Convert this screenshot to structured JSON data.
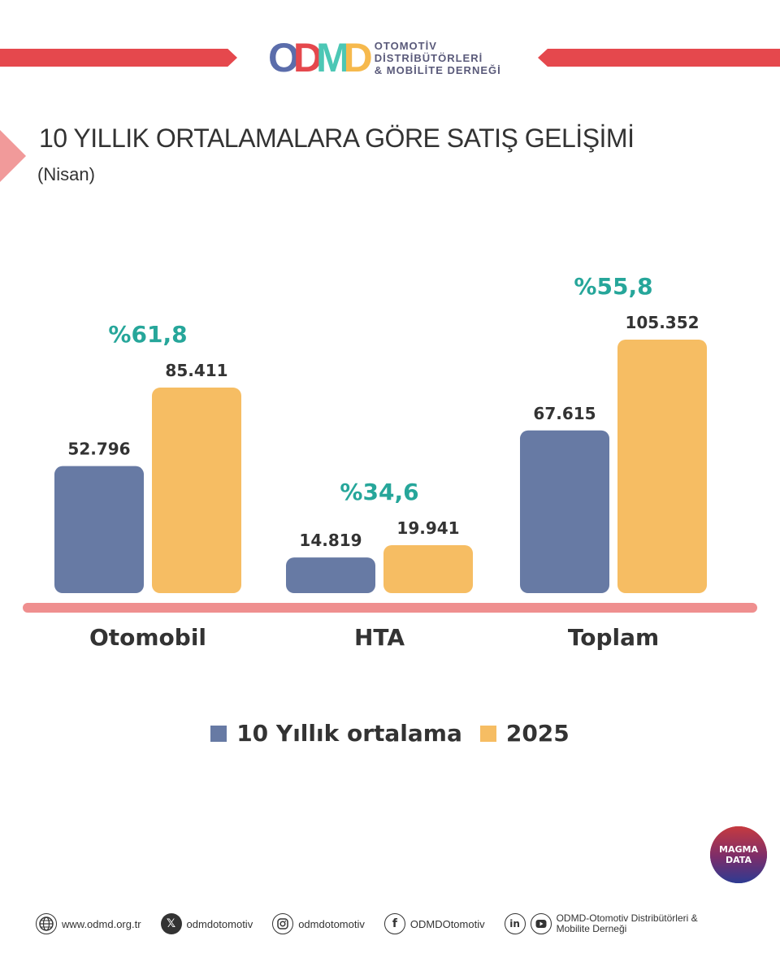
{
  "header": {
    "logo_letters": [
      "O",
      "D",
      "M",
      "D"
    ],
    "logo_colors": [
      "#5b6dab",
      "#e5484d",
      "#4cc7b5",
      "#f6b94d"
    ],
    "org_lines": [
      "OTOMOTİV",
      "DİSTRİBÜTÖRLERİ",
      "& MOBİLİTE DERNEĞİ"
    ]
  },
  "title": "10 YILLIK ORTALAMALARA GÖRE SATIŞ GELİŞİMİ",
  "subtitle": "(Nisan)",
  "chart_data": {
    "type": "bar",
    "categories": [
      "Otomobil",
      "HTA",
      "Toplam"
    ],
    "series": [
      {
        "name": "10 Yıllık ortalama",
        "color": "#677aa4",
        "values": [
          52796,
          14819,
          67615
        ],
        "labels": [
          "52.796",
          "14.819",
          "67.615"
        ]
      },
      {
        "name": "2025",
        "color": "#f6bd63",
        "values": [
          85411,
          19941,
          105352
        ],
        "labels": [
          "85.411",
          "19.941",
          "105.352"
        ]
      }
    ],
    "changes": [
      "%61,8",
      "%34,6",
      "%55,8"
    ],
    "baseline_color": "#ef8f8f",
    "change_color": "#26a69a",
    "grid": false,
    "legend_position": "bottom-center"
  },
  "legend": [
    {
      "label": "10 Yıllık ortalama",
      "color": "#677aa4"
    },
    {
      "label": "2025",
      "color": "#f6bd63"
    }
  ],
  "badge": {
    "line1": "MAGMA",
    "line2": "DATA"
  },
  "footer": {
    "website": "www.odmd.org.tr",
    "x": "odmdotomotiv",
    "instagram": "odmdotomotiv",
    "facebook": "ODMDOtomotiv",
    "org_line1": "ODMD-Otomotiv Distribütörleri &",
    "org_line2": "Mobilite Derneği"
  }
}
